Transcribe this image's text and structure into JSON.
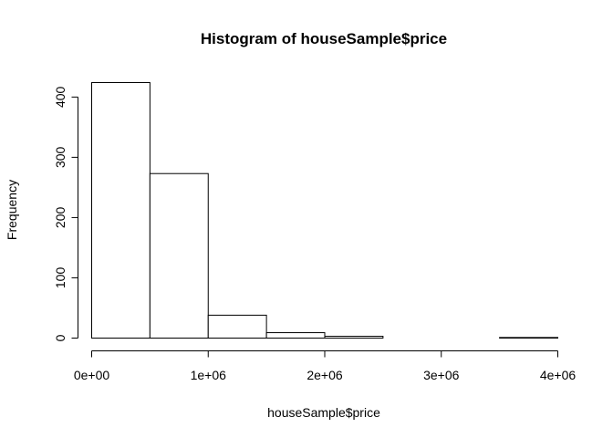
{
  "chart_data": {
    "type": "bar",
    "title": "Histogram of houseSample$price",
    "xlabel": "houseSample$price",
    "ylabel": "Frequency",
    "bins": [
      {
        "from": 0,
        "to": 500000,
        "count": 424
      },
      {
        "from": 500000,
        "to": 1000000,
        "count": 273
      },
      {
        "from": 1000000,
        "to": 1500000,
        "count": 38
      },
      {
        "from": 1500000,
        "to": 2000000,
        "count": 9
      },
      {
        "from": 2000000,
        "to": 2500000,
        "count": 3
      },
      {
        "from": 2500000,
        "to": 3000000,
        "count": 0
      },
      {
        "from": 3000000,
        "to": 3500000,
        "count": 0
      },
      {
        "from": 3500000,
        "to": 4000000,
        "count": 1
      }
    ],
    "xlim": [
      0,
      4000000
    ],
    "ylim": [
      0,
      424
    ],
    "x_ticks": [
      {
        "value": 0,
        "label": "0e+00"
      },
      {
        "value": 1000000,
        "label": "1e+06"
      },
      {
        "value": 2000000,
        "label": "2e+06"
      },
      {
        "value": 3000000,
        "label": "3e+06"
      },
      {
        "value": 4000000,
        "label": "4e+06"
      }
    ],
    "y_ticks": [
      {
        "value": 0,
        "label": "0"
      },
      {
        "value": 100,
        "label": "100"
      },
      {
        "value": 200,
        "label": "200"
      },
      {
        "value": 300,
        "label": "300"
      },
      {
        "value": 400,
        "label": "400"
      }
    ],
    "grid": false,
    "bar_fill": "#ffffff",
    "bar_stroke": "#000000"
  }
}
